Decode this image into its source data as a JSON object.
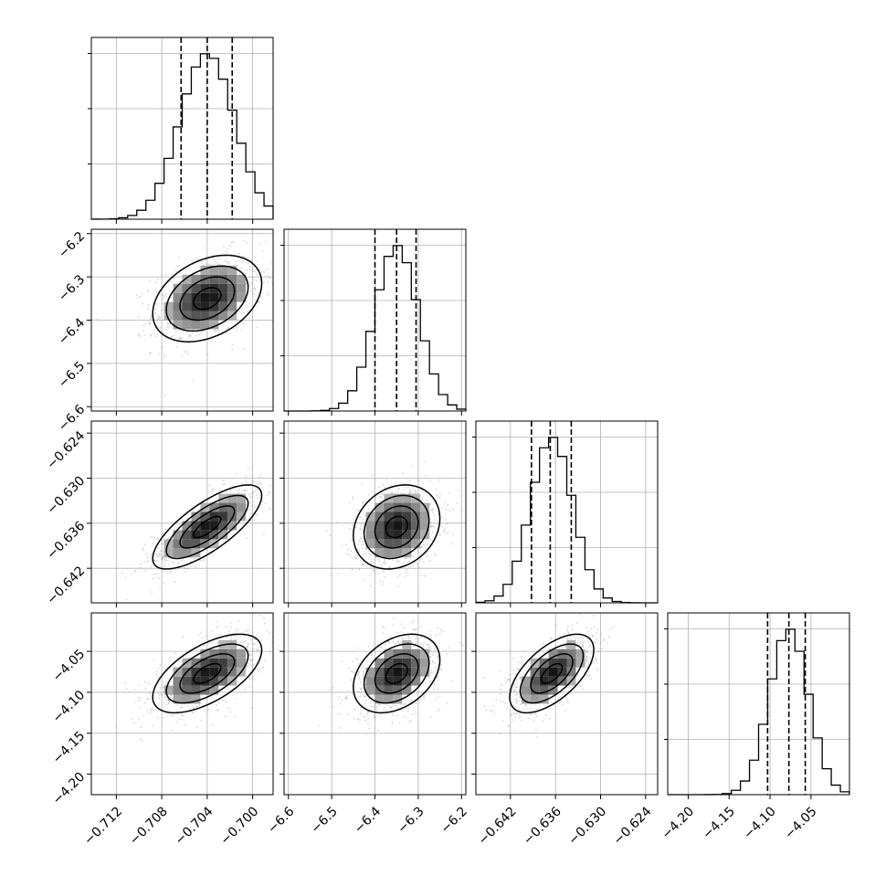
{
  "chart_data": {
    "type": "corner",
    "grid": true,
    "colors": {
      "line": "#000000",
      "grid": "#b0b0b0",
      "points": "#888888"
    },
    "params": [
      {
        "range": [
          -0.7142,
          -0.6982
        ],
        "ticks": [
          -0.712,
          -0.708,
          -0.704,
          -0.7
        ],
        "tick_labels": [
          "−0.712",
          "−0.708",
          "−0.704",
          "−0.700"
        ],
        "mean": -0.704,
        "sigma": 0.0024,
        "quantiles": [
          -0.7063,
          -0.704,
          -0.7018
        ]
      },
      {
        "range": [
          -6.61,
          -6.19
        ],
        "ticks": [
          -6.6,
          -6.5,
          -6.4,
          -6.3,
          -6.2
        ],
        "tick_labels": [
          "−6.6",
          "−6.5",
          "−6.4",
          "−6.3",
          "−6.2"
        ],
        "mean": -6.35,
        "sigma": 0.05,
        "quantiles": [
          -6.4,
          -6.35,
          -6.305
        ]
      },
      {
        "range": [
          -0.6466,
          -0.6224
        ],
        "ticks": [
          -0.642,
          -0.636,
          -0.63,
          -0.624
        ],
        "tick_labels": [
          "−0.642",
          "−0.636",
          "−0.630",
          "−0.624"
        ],
        "mean": -0.6365,
        "sigma": 0.0028,
        "quantiles": [
          -0.6392,
          -0.6367,
          -0.6339
        ]
      },
      {
        "range": [
          -4.225,
          -4.003
        ],
        "ticks": [
          -4.2,
          -4.15,
          -4.1,
          -4.05
        ],
        "tick_labels": [
          "−4.20",
          "−4.15",
          "−4.10",
          "−4.05"
        ],
        "mean": -4.077,
        "sigma": 0.024,
        "quantiles": [
          -4.103,
          -4.077,
          -4.057
        ]
      }
    ],
    "correlations": [
      [
        1.0,
        0.35,
        0.75,
        0.6
      ],
      [
        0.35,
        1.0,
        0.2,
        0.35
      ],
      [
        0.75,
        0.2,
        1.0,
        0.6
      ],
      [
        0.6,
        0.35,
        0.6,
        1.0
      ]
    ],
    "hist_bins": 20
  }
}
